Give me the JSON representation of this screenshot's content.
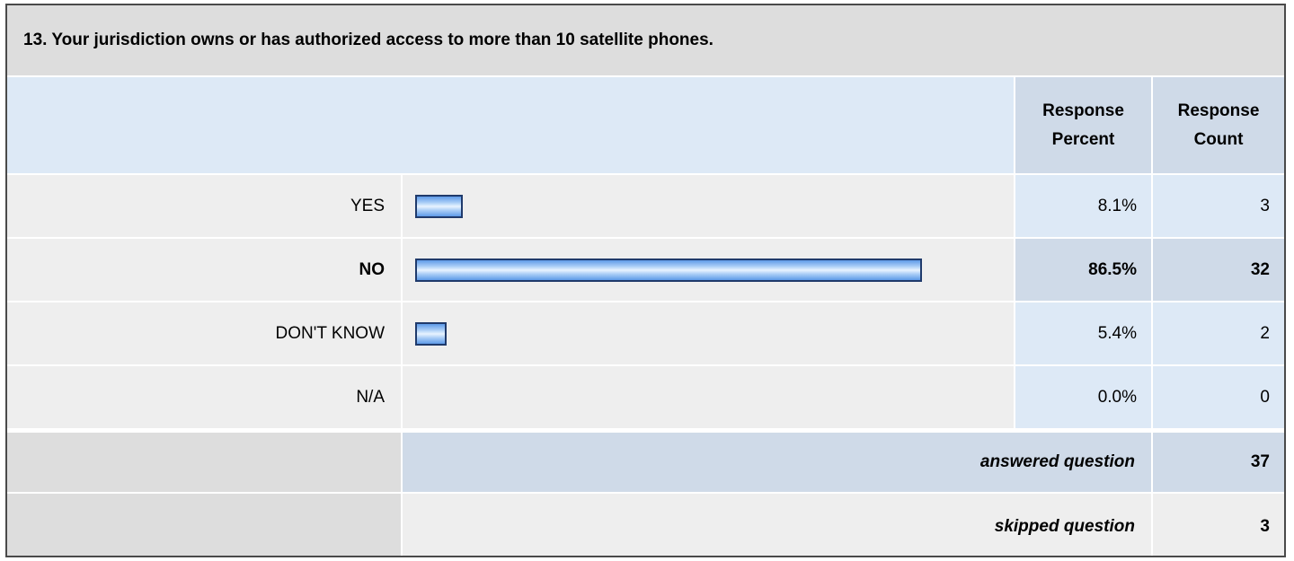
{
  "question": {
    "title": "13. Your jurisdiction owns or has authorized access to more than 10 satellite phones."
  },
  "header": {
    "percent_label_line1": "Response",
    "percent_label_line2": "Percent",
    "count_label_line1": "Response",
    "count_label_line2": "Count"
  },
  "chart_data": {
    "type": "bar",
    "orientation": "horizontal",
    "categories": [
      "YES",
      "NO",
      "DON'T KNOW",
      "N/A"
    ],
    "values": [
      8.1,
      86.5,
      5.4,
      0.0
    ],
    "value_labels": [
      "8.1%",
      "86.5%",
      "5.4%",
      "0.0%"
    ],
    "counts": [
      3,
      32,
      2,
      0
    ],
    "xlim": [
      0,
      100
    ],
    "title": "13. Your jurisdiction owns or has authorized access to more than 10 satellite phones.",
    "grid": false
  },
  "rows": [
    {
      "label": "YES",
      "percent": "8.1%",
      "count": "3",
      "bold": false
    },
    {
      "label": "NO",
      "percent": "86.5%",
      "count": "32",
      "bold": true
    },
    {
      "label": "DON'T KNOW",
      "percent": "5.4%",
      "count": "2",
      "bold": false
    },
    {
      "label": "N/A",
      "percent": "0.0%",
      "count": "0",
      "bold": false
    }
  ],
  "summary": {
    "answered_label": "answered question",
    "answered_value": "37",
    "skipped_label": "skipped question",
    "skipped_value": "3"
  },
  "colors": {
    "bar_fill": "#7fb0f0",
    "bar_border": "#1f3a6b",
    "header_bg": "#dde9f6",
    "highlight_bg": "#cfdae8"
  }
}
